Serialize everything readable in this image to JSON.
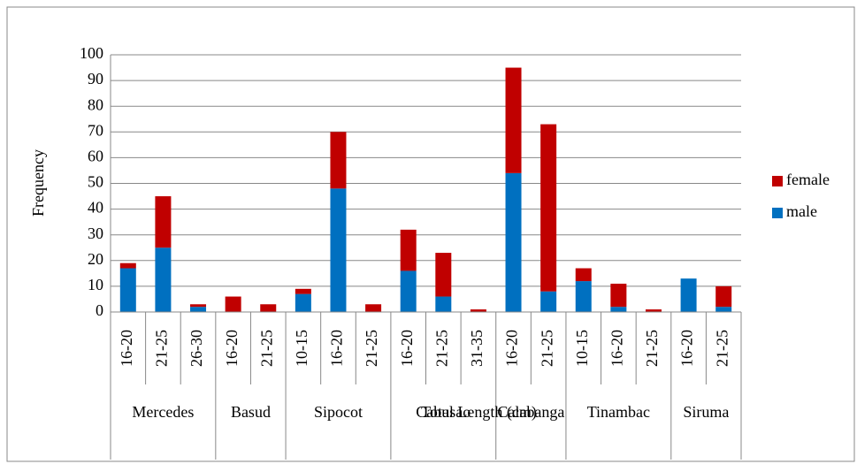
{
  "chart_data": {
    "type": "stacked_bar",
    "y_label": "Frequency",
    "x_label": "Total Length (cm)",
    "groups": [
      {
        "name": "Mercedes",
        "categories": [
          "16-20",
          "21-25",
          "26-30"
        ]
      },
      {
        "name": "Basud",
        "categories": [
          "16-20",
          "21-25"
        ]
      },
      {
        "name": "Sipocot",
        "categories": [
          "10-15",
          "16-20",
          "21-25"
        ]
      },
      {
        "name": "Cabusao",
        "categories": [
          "16-20",
          "21-25",
          "31-35"
        ]
      },
      {
        "name": "Calabanga",
        "categories": [
          "16-20",
          "21-25"
        ]
      },
      {
        "name": "Tinambac",
        "categories": [
          "10-15",
          "16-20",
          "21-25"
        ]
      },
      {
        "name": "Siruma",
        "categories": [
          "16-20",
          "21-25"
        ]
      }
    ],
    "series": [
      {
        "name": "male",
        "color": "#0070c0",
        "values": [
          17,
          25,
          2,
          0,
          0,
          7,
          48,
          0,
          16,
          6,
          0,
          54,
          8,
          12,
          2,
          0,
          13,
          2
        ]
      },
      {
        "name": "female",
        "color": "#c00000",
        "values": [
          2,
          20,
          1,
          6,
          3,
          2,
          22,
          3,
          16,
          17,
          1,
          41,
          65,
          5,
          9,
          1,
          0,
          8
        ]
      }
    ],
    "ylim": [
      0,
      100
    ],
    "yticks": [
      0,
      10,
      20,
      30,
      40,
      50,
      60,
      70,
      80,
      90,
      100
    ],
    "grid": true,
    "legend": "right"
  }
}
